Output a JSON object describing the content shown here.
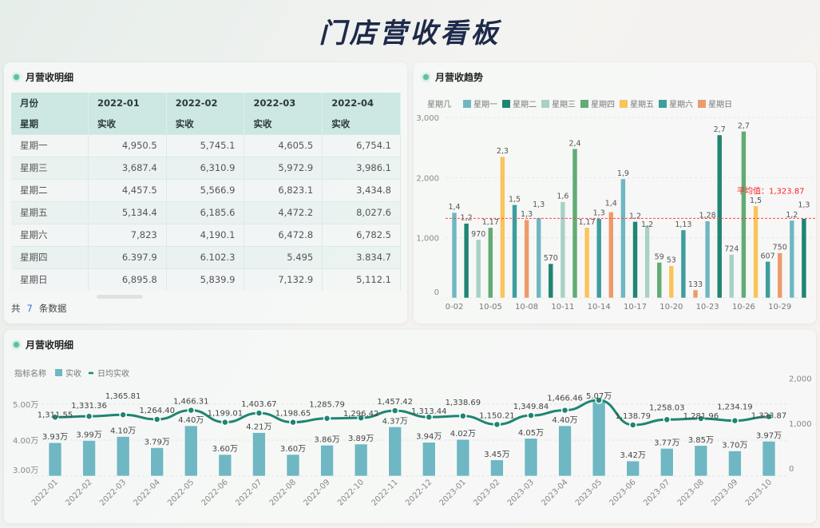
{
  "title": "门店营收看板",
  "table_panel": {
    "title": "月营收明细",
    "headers_row1": [
      "月份",
      "2022-01",
      "2022-02",
      "2022-03",
      "2022-04"
    ],
    "headers_row2": [
      "星期",
      "实收",
      "实收",
      "实收",
      "实收"
    ],
    "rows": [
      [
        "星期一",
        "4,950.5",
        "5,745.1",
        "4,605.5",
        "6,754.1"
      ],
      [
        "星期三",
        "3,687.4",
        "6,310.9",
        "5,972.9",
        "3,986.1"
      ],
      [
        "星期二",
        "4,457.5",
        "5,566.9",
        "6,823.1",
        "3,434.8"
      ],
      [
        "星期五",
        "5,134.4",
        "6,185.6",
        "4,472.2",
        "8,027.6"
      ],
      [
        "星期六",
        "7,823",
        "4,190.1",
        "6,472.8",
        "6,782.5"
      ],
      [
        "星期四",
        "6.397.9",
        "6.102.3",
        "5.495",
        "3.834.7"
      ],
      [
        "星期日",
        "6,895.8",
        "5,839.9",
        "7,132.9",
        "5,112.1"
      ]
    ],
    "footer_prefix": "共",
    "footer_count": "7",
    "footer_suffix": "条数据"
  },
  "trend_panel": {
    "title": "月营收趋势"
  },
  "bottom_panel": {
    "title": "月营收明细"
  },
  "chart_data": [
    {
      "type": "bar",
      "title": "月营收趋势",
      "legend_title": "星期几",
      "legend": [
        {
          "name": "星期一",
          "color": "#6fb7c3"
        },
        {
          "name": "星期二",
          "color": "#1f8572"
        },
        {
          "name": "星期三",
          "color": "#a8d0c6"
        },
        {
          "name": "星期四",
          "color": "#63ab74"
        },
        {
          "name": "星期五",
          "color": "#f9c45a"
        },
        {
          "name": "星期六",
          "color": "#3f9d9e"
        },
        {
          "name": "星期日",
          "color": "#ec9b6b"
        }
      ],
      "categories": [
        "10-02",
        "10-03",
        "10-04",
        "10-05",
        "10-06",
        "10-07",
        "10-08",
        "10-09",
        "10-10",
        "10-11",
        "10-12",
        "10-13",
        "10-14",
        "10-15",
        "10-16",
        "10-17",
        "10-18",
        "10-19",
        "10-20",
        "10-21",
        "10-22",
        "10-23",
        "10-24",
        "10-25",
        "10-26",
        "10-27",
        "10-28",
        "10-29",
        "10-30",
        "10-31"
      ],
      "x_tick_labels": [
        "0-02",
        "10-05",
        "10-08",
        "10-11",
        "10-14",
        "10-17",
        "10-20",
        "10-23",
        "10-26",
        "10-29"
      ],
      "weekday_index": [
        0,
        1,
        2,
        3,
        4,
        5,
        6,
        0,
        1,
        2,
        3,
        4,
        5,
        6,
        0,
        1,
        2,
        3,
        4,
        5,
        6,
        0,
        1,
        2,
        3,
        4,
        5,
        6,
        0,
        1
      ],
      "values": [
        1420,
        1240,
        970,
        1170,
        2350,
        1550,
        1300,
        1330,
        570,
        1600,
        2480,
        1170,
        1320,
        1430,
        1980,
        1270,
        1210,
        591,
        536,
        1130,
        133,
        1280,
        2710,
        724,
        2770,
        1530,
        607,
        750,
        1290,
        1320
      ],
      "value_labels": [
        "1,4",
        "1,2",
        "970",
        "1,17",
        "2,3",
        "1,5",
        "1,3",
        "1,3",
        "570",
        "1,6",
        "2,4",
        "1,17",
        "1,3",
        "1,4",
        "1,9",
        "1,2",
        "1,2",
        "59",
        "53",
        "1,13",
        "133",
        "1,28",
        "2,7",
        "724",
        "2,7",
        "1,5",
        "607",
        "750",
        "1,2",
        "1,3"
      ],
      "y_ticks": [
        "0",
        "1,000",
        "2,000",
        "3,000"
      ],
      "ylim": [
        0,
        3000
      ],
      "average": 1323.87,
      "average_label": "平均值：1,323.87"
    },
    {
      "type": "bar+line",
      "legend_title": "指标名称",
      "bar_name": "实收",
      "line_name": "日均实收",
      "bar_color": "#6fb7c3",
      "line_color": "#1f8572",
      "categories": [
        "2022-01",
        "2022-02",
        "2022-03",
        "2022-04",
        "2022-05",
        "2022-06",
        "2022-07",
        "2022-08",
        "2022-09",
        "2022-10",
        "2022-11",
        "2022-12",
        "2023-01",
        "2023-02",
        "2023-03",
        "2023-04",
        "2023-05",
        "2023-06",
        "2023-07",
        "2023-08",
        "2023-09",
        "2023-10"
      ],
      "bar_values": [
        3.93,
        3.99,
        4.1,
        3.79,
        4.4,
        3.6,
        4.21,
        3.6,
        3.86,
        3.89,
        4.37,
        3.94,
        4.02,
        3.45,
        4.05,
        4.4,
        5.07,
        3.42,
        3.77,
        3.85,
        3.7,
        3.97
      ],
      "bar_labels": [
        "3.93万",
        "3.99万",
        "4.10万",
        "3.79万",
        "4.40万",
        "3.60万",
        "4.21万",
        "3.60万",
        "3.86万",
        "3.89万",
        "4.37万",
        "3.94万",
        "4.02万",
        "3.45万",
        "4.05万",
        "4.40万",
        "5.07万",
        "3.42万",
        "3.77万",
        "3.85万",
        "3.70万",
        "3.97万"
      ],
      "line_values": [
        1311.55,
        1331.36,
        1365.81,
        1264.4,
        1466.31,
        1199.01,
        1403.67,
        1198.65,
        1285.79,
        1296.42,
        1457.42,
        1313.44,
        1338.69,
        1150.21,
        1349.84,
        1466.46,
        1690,
        1138.79,
        1258.03,
        1281.96,
        1234.19,
        1323.87
      ],
      "line_labels": [
        "1,311.55",
        "1,331.36",
        "1,365.81",
        "1,264.40",
        "1,466.31",
        "1,199.01",
        "1,403.67",
        "1,198.65",
        "1,285.79",
        "1,296.42",
        "1,457.42",
        "1,313.44",
        "1,338.69",
        "1,150.21",
        "1,349.84",
        "1,466.46",
        null,
        "1,138.79",
        "1,258.03",
        "1,281.96",
        "1,234.19",
        "1,323.87"
      ],
      "left_y_ticks": [
        "3.00万",
        "4.00万",
        "5.00万"
      ],
      "left_ylim_wan": [
        3,
        5
      ],
      "right_y_ticks": [
        "0",
        "1,000",
        "2,000"
      ],
      "right_ylim": [
        0,
        2000
      ]
    }
  ]
}
